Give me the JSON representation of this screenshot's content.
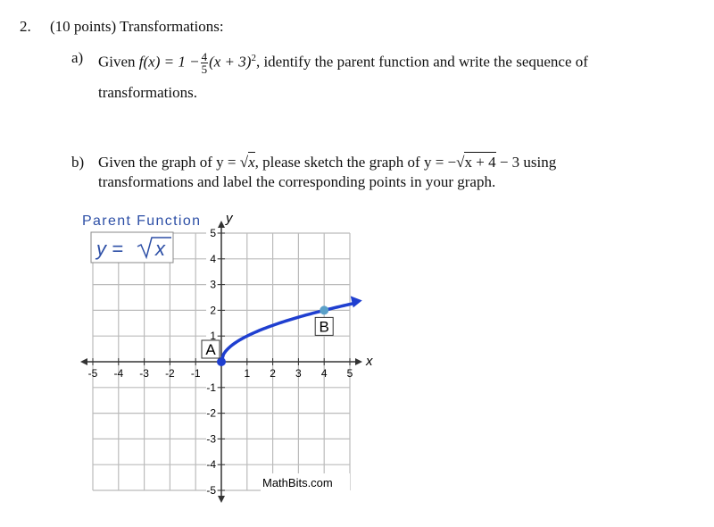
{
  "question": {
    "number": "2.",
    "heading": "(10 points) Transformations:"
  },
  "part_a": {
    "label": "a)",
    "given": "Given",
    "function_lhs": "f(x) = 1 −",
    "fraction_numerator": "4",
    "fraction_denominator": "5",
    "factor": "(x + 3)",
    "exponent": "2",
    "text_after": ", identify the parent function and write the sequence of",
    "line2": "transformations."
  },
  "part_b": {
    "label": "b)",
    "given": "Given the graph of y = ",
    "parent_radical": "x",
    "middle": ", please sketch the graph of y = −",
    "radical": "x + 4",
    "after_radical": " − 3 using",
    "line2": "transformations and label the corresponding points in your graph."
  },
  "graph": {
    "title": "Parent Function",
    "equation_lhs": "y = ",
    "equation_radical": "x",
    "xticks": [
      -5,
      -4,
      -3,
      -2,
      -1,
      1,
      2,
      3,
      4,
      5
    ],
    "yticks": [
      -5,
      -4,
      -3,
      -2,
      -1,
      1,
      2,
      3,
      4,
      5
    ],
    "x_axis_label": "x",
    "y_axis_label": "y",
    "points": [
      {
        "label": "A",
        "x": 0,
        "y": 0
      },
      {
        "label": "B",
        "x": 4,
        "y": 2
      }
    ],
    "credit": "MathBits.com"
  }
}
